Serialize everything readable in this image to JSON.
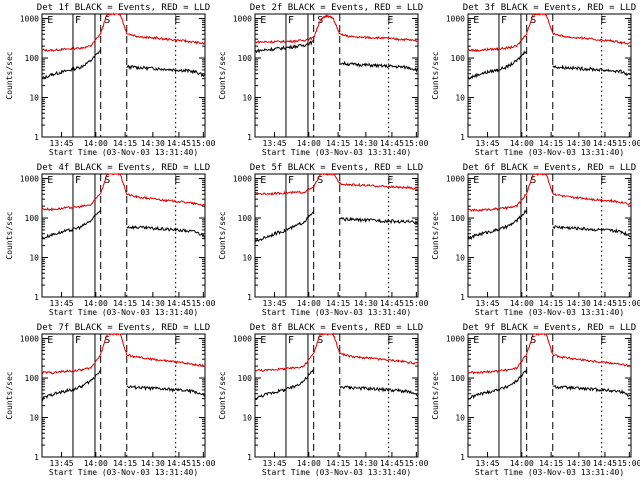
{
  "chart_data": {
    "type": "line",
    "panels": [
      {
        "title": "Det 1f BLACK = Events, RED = LLD",
        "red": [
          160,
          155,
          165,
          170,
          180,
          200,
          420,
          1300,
          1300,
          1300,
          420,
          360,
          330,
          320,
          300,
          285,
          270,
          250,
          230
        ],
        "black": [
          30,
          38,
          44,
          50,
          60,
          85,
          160,
          0,
          0,
          0,
          60,
          58,
          56,
          54,
          52,
          50,
          48,
          45,
          35
        ]
      },
      {
        "title": "Det 2f BLACK = Events, RED = LLD",
        "red": [
          255,
          255,
          258,
          262,
          268,
          280,
          330,
          900,
          1200,
          1000,
          400,
          350,
          335,
          330,
          325,
          310,
          300,
          290,
          270
        ],
        "black": [
          150,
          160,
          170,
          180,
          195,
          210,
          260,
          0,
          0,
          0,
          75,
          70,
          68,
          66,
          64,
          62,
          60,
          58,
          50
        ]
      },
      {
        "title": "Det 3f BLACK = Events, RED = LLD",
        "red": [
          160,
          155,
          165,
          170,
          180,
          200,
          420,
          1300,
          1300,
          1300,
          420,
          360,
          330,
          320,
          300,
          285,
          270,
          250,
          230
        ],
        "black": [
          30,
          38,
          44,
          50,
          60,
          85,
          160,
          0,
          0,
          0,
          60,
          58,
          56,
          54,
          52,
          50,
          48,
          45,
          35
        ]
      },
      {
        "title": "Det 4f BLACK = Events, RED = LLD",
        "red": [
          170,
          165,
          175,
          185,
          195,
          215,
          430,
          1300,
          1300,
          1300,
          400,
          340,
          320,
          300,
          280,
          265,
          250,
          230,
          210
        ],
        "black": [
          30,
          38,
          44,
          50,
          60,
          85,
          160,
          0,
          0,
          0,
          60,
          58,
          56,
          54,
          52,
          50,
          48,
          45,
          35
        ]
      },
      {
        "title": "Det 5f BLACK = Events, RED = LLD",
        "red": [
          420,
          410,
          420,
          430,
          440,
          450,
          600,
          1300,
          1300,
          1300,
          750,
          700,
          680,
          660,
          640,
          620,
          600,
          580,
          540
        ],
        "black": [
          25,
          32,
          40,
          48,
          60,
          80,
          140,
          0,
          0,
          0,
          95,
          92,
          90,
          88,
          86,
          84,
          82,
          80,
          78
        ]
      },
      {
        "title": "Det 6f BLACK = Events, RED = LLD",
        "red": [
          160,
          155,
          165,
          170,
          180,
          200,
          420,
          1300,
          1300,
          1300,
          420,
          360,
          330,
          320,
          300,
          285,
          270,
          250,
          230
        ],
        "black": [
          30,
          38,
          44,
          50,
          60,
          85,
          160,
          0,
          0,
          0,
          60,
          58,
          56,
          54,
          52,
          50,
          48,
          45,
          35
        ]
      },
      {
        "title": "Det 7f BLACK = Events, RED = LLD",
        "red": [
          140,
          135,
          145,
          150,
          160,
          180,
          400,
          1300,
          1300,
          1300,
          380,
          340,
          310,
          290,
          270,
          255,
          240,
          220,
          200
        ],
        "black": [
          30,
          38,
          44,
          50,
          60,
          85,
          160,
          0,
          0,
          0,
          60,
          58,
          56,
          54,
          52,
          50,
          48,
          45,
          35
        ]
      },
      {
        "title": "Det 8f BLACK = Events, RED = LLD",
        "red": [
          160,
          155,
          165,
          170,
          180,
          200,
          420,
          1300,
          1300,
          1300,
          420,
          360,
          330,
          320,
          300,
          285,
          270,
          250,
          230
        ],
        "black": [
          30,
          38,
          44,
          50,
          60,
          85,
          160,
          0,
          0,
          0,
          60,
          58,
          56,
          54,
          52,
          50,
          48,
          45,
          35
        ]
      },
      {
        "title": "Det 9f BLACK = Events, RED = LLD",
        "red": [
          140,
          135,
          145,
          150,
          160,
          180,
          400,
          1300,
          1300,
          1300,
          380,
          340,
          310,
          290,
          270,
          255,
          240,
          220,
          200
        ],
        "black": [
          30,
          38,
          44,
          50,
          60,
          85,
          160,
          0,
          0,
          0,
          60,
          58,
          56,
          54,
          52,
          50,
          48,
          45,
          35
        ]
      }
    ],
    "x": [
      0.0,
      0.06,
      0.12,
      0.18,
      0.24,
      0.3,
      0.36,
      0.4,
      0.44,
      0.48,
      0.52,
      0.58,
      0.64,
      0.7,
      0.76,
      0.82,
      0.88,
      0.94,
      1.0
    ],
    "xticks": [
      "13:45",
      "14:00",
      "14:15",
      "14:30",
      "14:45",
      "15:00"
    ],
    "xlabel": "Start Time (03-Nov-03 13:31:40)",
    "ylabel": "Counts/sec",
    "yticks": [
      "1",
      "10",
      "100",
      "1000"
    ],
    "ylim": [
      1,
      1300
    ],
    "yscale": "log",
    "markers": [
      "E",
      "F",
      "S",
      "E"
    ],
    "colors": {
      "red": "#dd0000",
      "black": "#000000"
    }
  }
}
